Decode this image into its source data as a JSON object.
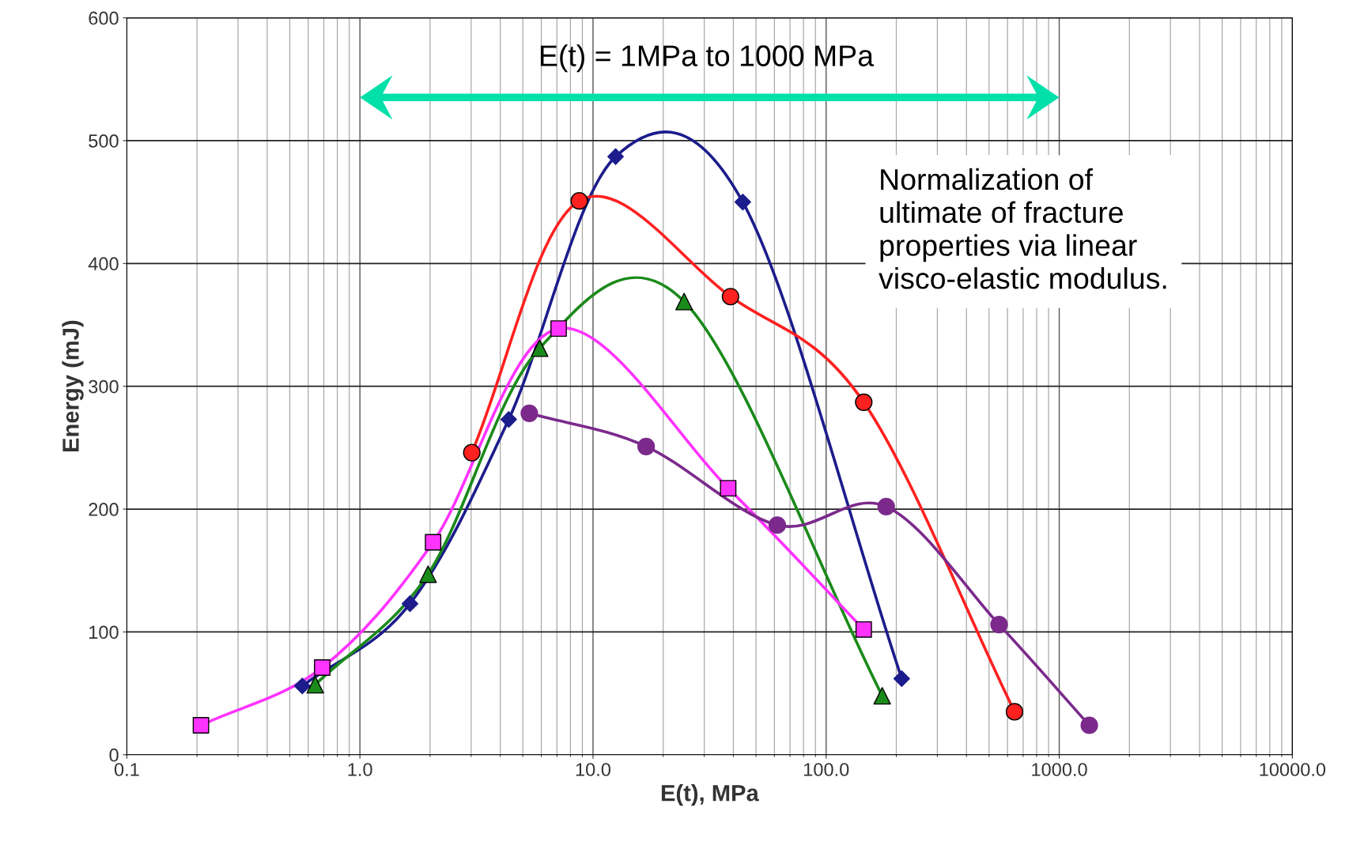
{
  "chart_data": {
    "type": "line",
    "xlabel": "E(t), MPa",
    "ylabel": "Energy (mJ)",
    "log": "x",
    "grid": true,
    "xlim": [
      0.1,
      10000
    ],
    "ylim": [
      0,
      600
    ],
    "xticks": [
      {
        "value": 0.1,
        "label": "0.1"
      },
      {
        "value": 1,
        "label": "1.0"
      },
      {
        "value": 10,
        "label": "10.0"
      },
      {
        "value": 100,
        "label": "100.0"
      },
      {
        "value": 1000,
        "label": "1000.0"
      },
      {
        "value": 10000,
        "label": "10000.0"
      }
    ],
    "yticks": [
      0,
      100,
      200,
      300,
      400,
      500,
      600
    ],
    "series": [
      {
        "color": "#1c1c8c",
        "marker": "diamond",
        "x": [
          0.566,
          1.64,
          4.35,
          12.5,
          43.9,
          211
        ],
        "values": [
          56,
          123,
          273,
          487,
          450,
          62
        ]
      },
      {
        "color": "#ff2020",
        "marker": "circle",
        "x": [
          3.02,
          8.73,
          38.9,
          145,
          643
        ],
        "values": [
          246,
          451,
          373,
          287,
          35
        ]
      },
      {
        "color": "#1a8a1a",
        "marker": "triangle",
        "x": [
          0.643,
          1.96,
          5.9,
          24.6,
          174
        ],
        "values": [
          57,
          147,
          331,
          369,
          48
        ]
      },
      {
        "color": "#ff33ff",
        "marker": "square",
        "x": [
          0.208,
          0.689,
          2.06,
          7.12,
          38,
          145
        ],
        "values": [
          24,
          71,
          173,
          347,
          217,
          102
        ]
      },
      {
        "color": "#7b2a8c",
        "marker": "circle",
        "x": [
          5.33,
          16.9,
          61.7,
          181,
          552,
          1346
        ],
        "values": [
          278,
          251,
          187,
          202,
          106,
          24
        ]
      }
    ],
    "annotations": [
      "E(t) = 1MPa to 1000 MPa",
      "Normalization of\nultimate of fracture\nproperties via linear\nvisco-elastic modulus."
    ]
  }
}
